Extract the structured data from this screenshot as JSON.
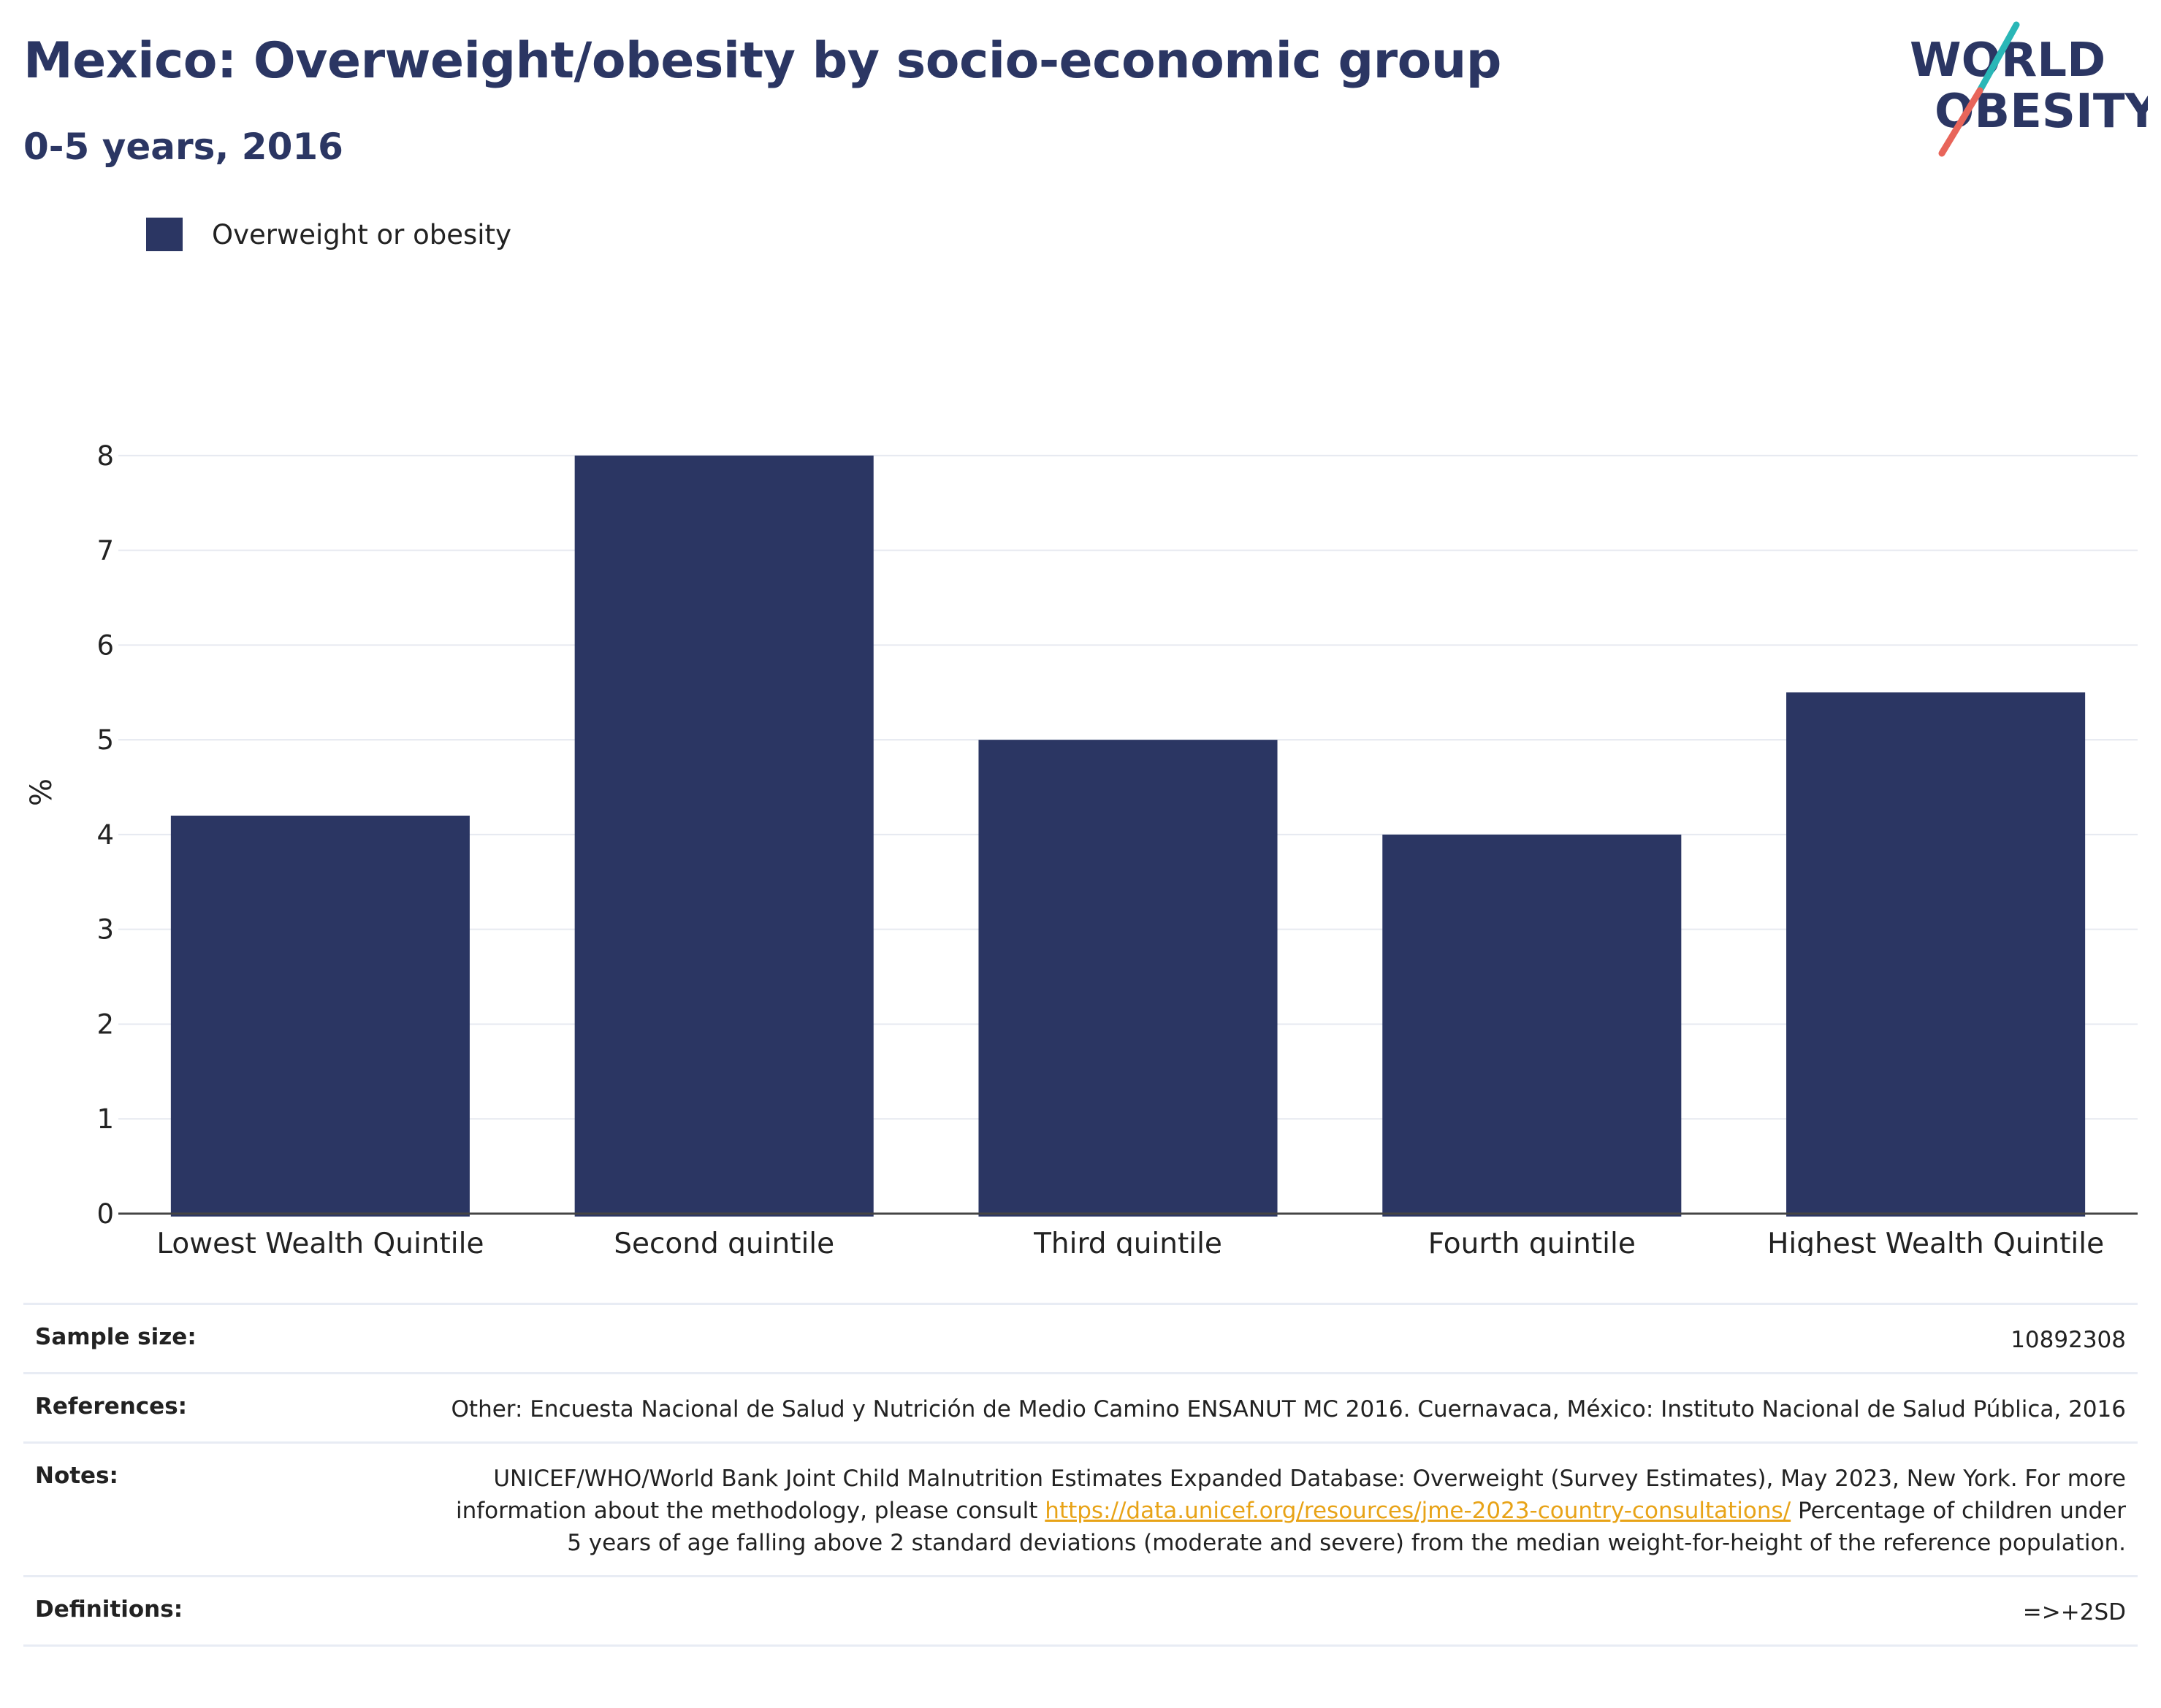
{
  "header": {
    "title": "Mexico: Overweight/obesity by socio-economic group",
    "subtitle": "0-5 years, 2016"
  },
  "logo": {
    "line1": "WORLD",
    "line2": "OBESITY",
    "colors": {
      "text": "#2b3663",
      "slash_top": "#2ab7b7",
      "slash_bottom": "#e8655a"
    }
  },
  "legend": {
    "label": "Overweight or obesity",
    "color": "#2b3663"
  },
  "chart_data": {
    "type": "bar",
    "categories": [
      "Lowest Wealth Quintile",
      "Second quintile",
      "Third quintile",
      "Fourth quintile",
      "Highest Wealth Quintile"
    ],
    "series": [
      {
        "name": "Overweight or obesity",
        "values": [
          4.2,
          8.0,
          5.0,
          4.0,
          5.5
        ],
        "color": "#2b3663"
      }
    ],
    "ylabel": "%",
    "ylim": [
      0,
      8.8
    ],
    "yticks": [
      0,
      1,
      2,
      3,
      4,
      5,
      6,
      7,
      8
    ],
    "grid": true,
    "legend_position": "top-left"
  },
  "info": {
    "sample_size_label": "Sample size:",
    "sample_size_value": "10892308",
    "references_label": "References:",
    "references_value": "Other: Encuesta Nacional de Salud y Nutrición de Medio Camino ENSANUT MC 2016. Cuernavaca, México: Instituto Nacional de Salud Pública, 2016",
    "notes_label": "Notes:",
    "notes_text_before": "UNICEF/WHO/World Bank Joint Child Malnutrition Estimates Expanded Database: Overweight (Survey Estimates), May 2023, New York. For more information about the methodology, please consult ",
    "notes_link": "https://data.unicef.org/resources/jme-2023-country-consultations/",
    "notes_text_after": " Percentage of children under 5 years of age falling above 2 standard deviations (moderate and severe) from the median weight-for-height of the reference population.",
    "definitions_label": "Definitions:",
    "definitions_value": "=>+2SD"
  }
}
